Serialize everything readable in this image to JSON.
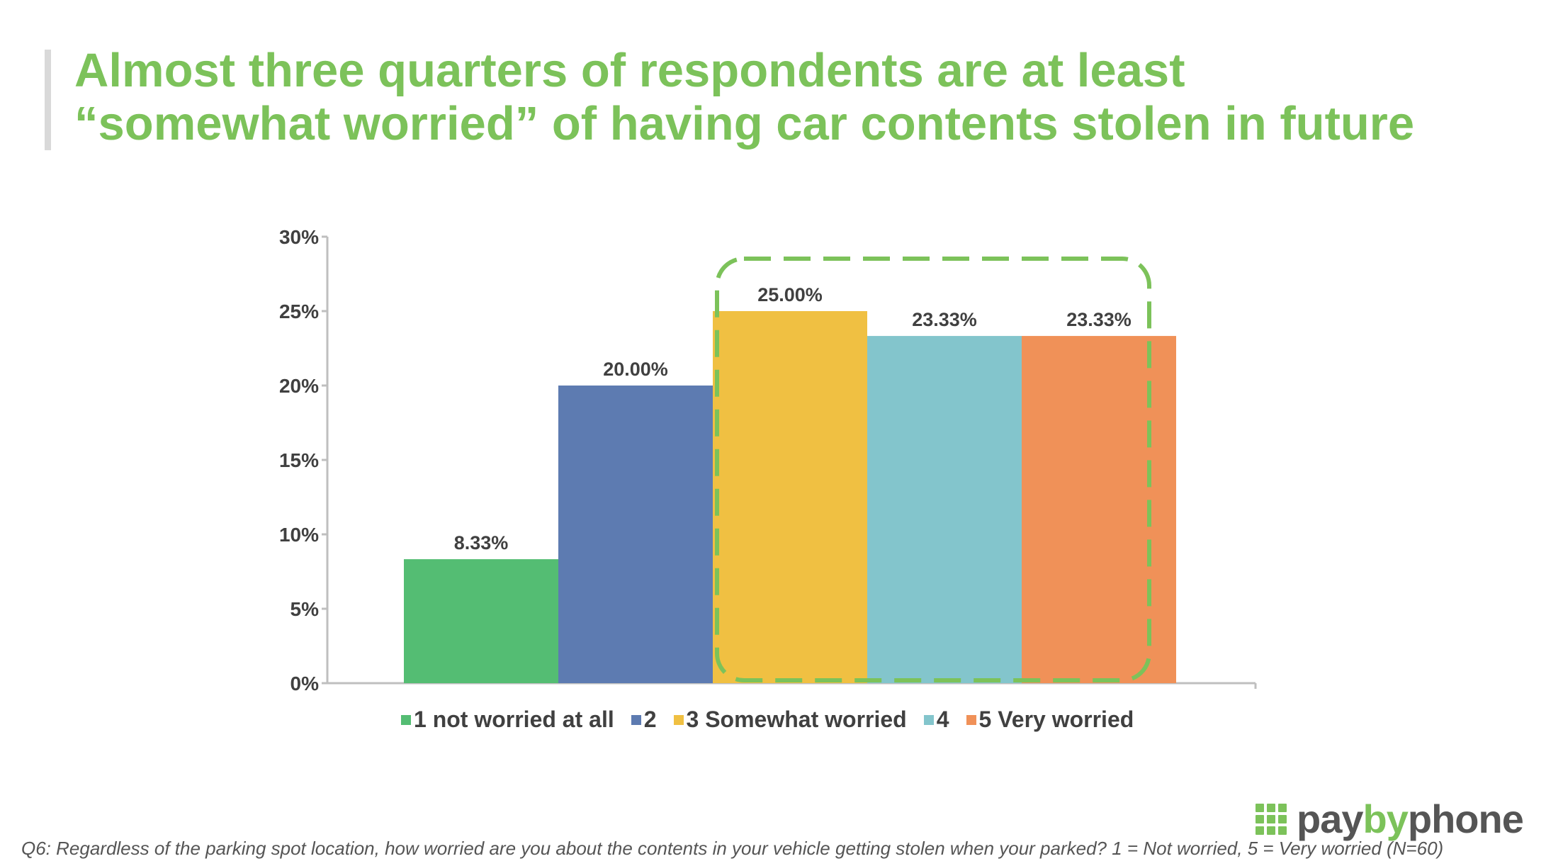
{
  "title": {
    "line1": "Almost three quarters of respondents are at least",
    "line2": "“somewhat worried” of having car contents stolen in future"
  },
  "chart_data": {
    "type": "bar",
    "title": "",
    "xlabel": "",
    "ylabel": "",
    "ylim": [
      0,
      30
    ],
    "yticks": [
      "0%",
      "5%",
      "10%",
      "15%",
      "20%",
      "25%",
      "30%"
    ],
    "categories": [
      "1 not worried at all",
      "2",
      "3 Somewhat worried",
      "4",
      "5 Very worried"
    ],
    "values": [
      8.33,
      20.0,
      25.0,
      23.33,
      23.33
    ],
    "data_labels": [
      "8.33%",
      "20.00%",
      "25.00%",
      "23.33%",
      "23.33%"
    ],
    "colors": [
      "#54bd73",
      "#5d7bb1",
      "#f0c042",
      "#83c5cc",
      "#f09158"
    ],
    "highlight": {
      "categories": [
        "3 Somewhat worried",
        "4",
        "5 Very worried"
      ],
      "style": "dashed rounded box",
      "color": "#7cc25a"
    },
    "legend_position": "bottom"
  },
  "brand": {
    "pay": "pay",
    "by": "by",
    "phone": "phone",
    "icon": "grid-logo-icon",
    "color": "#7cc25a"
  },
  "footnote": "Q6: Regardless of the parking spot location, how worried are you about the contents in your vehicle getting stolen when your parked? 1 = Not worried, 5 = Very worried (N=60)"
}
